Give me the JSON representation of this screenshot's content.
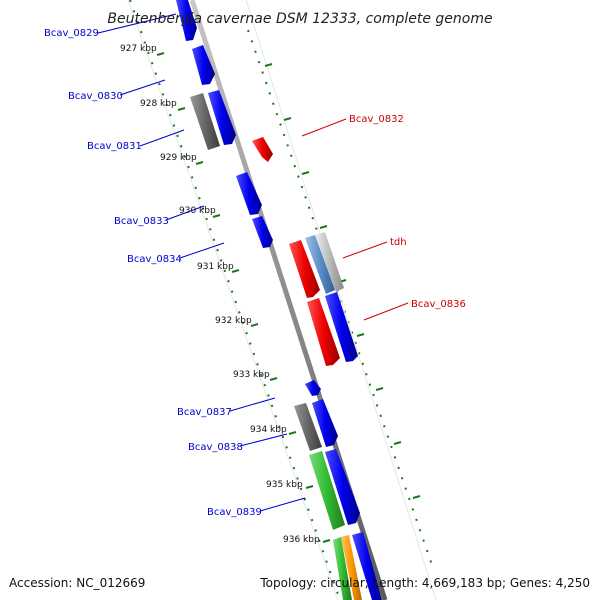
{
  "title": "Beutenbergia cavernae DSM 12333, complete genome",
  "accession": "Accession: NC_012669",
  "summary": "Topology: circular; Length: 4,669,183 bp; Genes: 4,250",
  "colors": {
    "forward_label": "#0000cc",
    "reverse_label": "#cc0000",
    "backbone": "#8c8c8c",
    "tick": "#1a7a1a",
    "cds_blue": "#0000ee",
    "cds_red": "#ee0000",
    "cds_gray": "#666666",
    "cds_green": "#33bb33",
    "cds_orange": "#ff9900",
    "cds_steelblue": "#5b8fc7",
    "cds_lightgray": "#bbbbbb"
  },
  "ticks": [
    "927 kbp",
    "928 kbp",
    "929 kbp",
    "930 kbp",
    "931 kbp",
    "932 kbp",
    "933 kbp",
    "934 kbp",
    "935 kbp",
    "936 kbp"
  ],
  "gene_labels": [
    "Bcav_0829",
    "Bcav_0830",
    "Bcav_0831",
    "Bcav_0832",
    "Bcav_0833",
    "Bcav_0834",
    "tdh",
    "Bcav_0836",
    "Bcav_0837",
    "Bcav_0838",
    "Bcav_0839"
  ]
}
